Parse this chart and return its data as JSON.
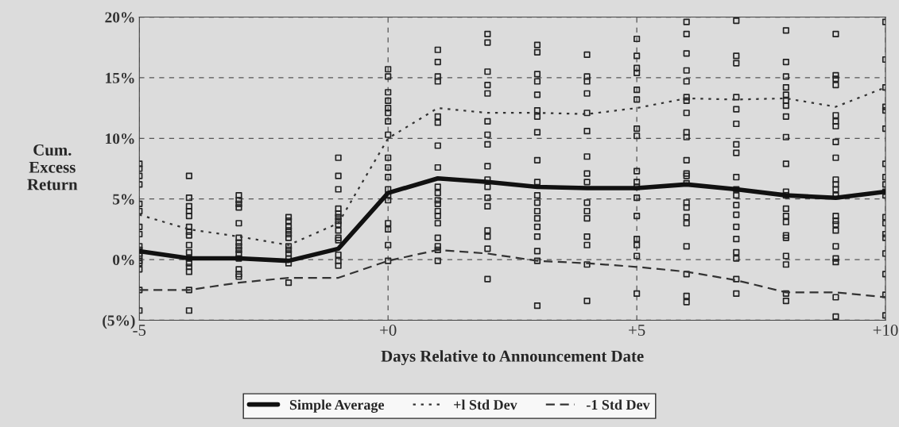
{
  "chart_data": {
    "type": "line",
    "xlabel": "Days Relative to Announcement Date",
    "ylabel": "Cum.\nExcess\nReturn",
    "x": [
      -5,
      -4,
      -3,
      -2,
      -1,
      0,
      1,
      2,
      3,
      4,
      5,
      6,
      7,
      8,
      9,
      10
    ],
    "xlim": [
      -5,
      10
    ],
    "xticks": [
      {
        "value": -5,
        "label": "-5"
      },
      {
        "value": 0,
        "label": "+0"
      },
      {
        "value": 5,
        "label": "+5"
      },
      {
        "value": 10,
        "label": "+10"
      }
    ],
    "ylim": [
      -5,
      20
    ],
    "yticks": [
      {
        "value": -5,
        "label": "(5%)"
      },
      {
        "value": 0,
        "label": "0%"
      },
      {
        "value": 5,
        "label": "5%"
      },
      {
        "value": 10,
        "label": "10%"
      },
      {
        "value": 15,
        "label": "15%"
      },
      {
        "value": 20,
        "label": "20%"
      }
    ],
    "grid": true,
    "legend": "bottom",
    "series": [
      {
        "type": "scatter",
        "color": "#222222",
        "marker": "square",
        "x": [
          -5,
          -5,
          -5,
          -5,
          -5,
          -5,
          -5,
          -5,
          -5,
          -5,
          -5,
          -5,
          -5,
          -5,
          -5,
          -5,
          -5,
          -4,
          -4,
          -4,
          -4,
          -4,
          -4,
          -4,
          -4,
          -4,
          -4,
          -4,
          -4,
          -4,
          -4,
          -4,
          -4,
          -3,
          -3,
          -3,
          -3,
          -3,
          -3,
          -3,
          -3,
          -3,
          -3,
          -3,
          -3,
          -3,
          -3,
          -2,
          -2,
          -2,
          -2,
          -2,
          -2,
          -2,
          -2,
          -2,
          -2,
          -2,
          -2,
          -1,
          -1,
          -1,
          -1,
          -1,
          -1,
          -1,
          -1,
          -1,
          -1,
          -1,
          -1,
          -1,
          -1,
          0,
          0,
          0,
          0,
          0,
          0,
          0,
          0,
          0,
          0,
          0,
          0,
          0,
          0,
          0,
          0,
          0,
          0,
          1,
          1,
          1,
          1,
          1,
          1,
          1,
          1,
          1,
          1,
          1,
          1,
          1,
          1,
          1,
          1,
          1,
          1,
          1,
          2,
          2,
          2,
          2,
          2,
          2,
          2,
          2,
          2,
          2,
          2,
          2,
          2,
          2,
          2,
          2,
          2,
          3,
          3,
          3,
          3,
          3,
          3,
          3,
          3,
          3,
          3,
          3,
          3,
          3,
          3,
          3,
          3,
          3,
          3,
          3,
          4,
          4,
          4,
          4,
          4,
          4,
          4,
          4,
          4,
          4,
          4,
          4,
          4,
          4,
          4,
          4,
          5,
          5,
          5,
          5,
          5,
          5,
          5,
          5,
          5,
          5,
          5,
          5,
          5,
          5,
          5,
          5,
          5,
          6,
          6,
          6,
          6,
          6,
          6,
          6,
          6,
          6,
          6,
          6,
          6,
          6,
          6,
          6,
          6,
          6,
          6,
          6,
          6,
          6,
          6,
          7,
          7,
          7,
          7,
          7,
          7,
          7,
          7,
          7,
          7,
          7,
          7,
          7,
          7,
          7,
          7,
          7,
          7,
          7,
          8,
          8,
          8,
          8,
          8,
          8,
          8,
          8,
          8,
          8,
          8,
          8,
          8,
          8,
          8,
          8,
          8,
          8,
          8,
          8,
          8,
          9,
          9,
          9,
          9,
          9,
          9,
          9,
          9,
          9,
          9,
          9,
          9,
          9,
          9,
          9,
          9,
          9,
          9,
          9,
          9,
          9,
          9,
          10,
          10,
          10,
          10,
          10,
          10,
          10,
          10,
          10,
          10,
          10,
          10,
          10,
          10,
          10,
          10,
          10,
          10,
          10
        ],
        "values": [
          7.9,
          7.5,
          6.9,
          6.2,
          4.6,
          4.0,
          2.7,
          2.1,
          1.1,
          0.8,
          0.5,
          0.3,
          -0.1,
          -0.3,
          -0.8,
          -2.5,
          -4.2,
          6.9,
          5.1,
          4.4,
          4.0,
          3.6,
          2.7,
          2.3,
          2.0,
          1.2,
          0.6,
          0.1,
          -0.3,
          -0.6,
          -1.0,
          -2.5,
          -4.2,
          5.3,
          4.9,
          4.6,
          4.3,
          3.0,
          1.8,
          1.4,
          1.1,
          0.8,
          0.5,
          0.1,
          -0.8,
          -1.2,
          -1.4,
          3.5,
          3.2,
          2.7,
          2.4,
          2.1,
          1.8,
          1.1,
          0.8,
          0.5,
          0.1,
          -0.3,
          -1.9,
          8.4,
          6.9,
          5.8,
          4.2,
          3.8,
          3.5,
          3.2,
          2.9,
          2.4,
          1.8,
          1.6,
          0.4,
          -0.1,
          -0.5,
          15.7,
          15.1,
          13.8,
          13.1,
          12.5,
          12.1,
          11.4,
          10.3,
          8.4,
          7.6,
          6.8,
          5.8,
          5.3,
          4.9,
          3.0,
          2.5,
          1.2,
          -0.1,
          17.3,
          16.3,
          15.1,
          14.7,
          11.8,
          11.3,
          9.4,
          7.6,
          6.0,
          5.5,
          4.9,
          4.6,
          4.0,
          3.6,
          3.0,
          1.8,
          1.1,
          0.8,
          -0.1,
          18.6,
          17.9,
          15.5,
          14.4,
          13.7,
          11.4,
          10.3,
          9.5,
          7.7,
          6.6,
          6.0,
          5.1,
          4.4,
          2.4,
          1.9,
          0.9,
          -1.6,
          17.7,
          17.1,
          15.3,
          14.7,
          13.6,
          12.3,
          11.8,
          10.5,
          8.2,
          6.4,
          5.3,
          4.7,
          4.0,
          3.4,
          2.7,
          1.9,
          0.7,
          -0.1,
          -3.8,
          16.9,
          15.1,
          14.7,
          13.7,
          12.1,
          10.6,
          8.5,
          7.1,
          6.4,
          4.7,
          4.0,
          3.4,
          1.9,
          1.2,
          -0.4,
          -3.4,
          18.2,
          16.8,
          15.8,
          15.4,
          14.0,
          13.2,
          10.8,
          10.2,
          7.3,
          6.4,
          6.0,
          5.1,
          3.6,
          1.7,
          1.2,
          0.3,
          -2.8,
          19.6,
          18.6,
          17.0,
          15.6,
          14.7,
          13.4,
          13.1,
          12.1,
          10.5,
          10.1,
          8.2,
          7.1,
          6.9,
          6.3,
          4.7,
          4.3,
          3.5,
          3.0,
          1.1,
          -1.2,
          -3.0,
          -3.5,
          19.7,
          16.8,
          16.2,
          13.4,
          12.4,
          11.2,
          9.5,
          8.8,
          6.8,
          5.8,
          5.3,
          4.5,
          3.7,
          2.7,
          1.7,
          0.6,
          0.1,
          -1.6,
          -2.8,
          18.9,
          16.3,
          15.1,
          14.2,
          13.6,
          13.1,
          12.7,
          11.8,
          10.1,
          7.9,
          5.6,
          5.3,
          4.2,
          3.6,
          3.1,
          2.0,
          1.8,
          0.3,
          -0.4,
          -2.8,
          -3.4,
          18.6,
          15.2,
          14.9,
          14.4,
          11.9,
          11.4,
          11.0,
          9.7,
          8.4,
          6.6,
          6.2,
          5.8,
          5.3,
          3.6,
          3.2,
          2.9,
          2.4,
          1.1,
          0.1,
          -0.2,
          -3.1,
          -4.7,
          19.6,
          16.5,
          14.2,
          12.6,
          12.3,
          10.8,
          7.9,
          6.8,
          6.2,
          5.6,
          5.3,
          3.5,
          3.0,
          2.1,
          1.8,
          0.5,
          -1.2,
          -2.9,
          -4.6
        ]
      },
      {
        "name": "Simple Average",
        "color": "#111111",
        "line_style": "solid",
        "values": [
          0.7,
          0.1,
          0.1,
          -0.1,
          0.9,
          5.5,
          6.7,
          6.4,
          6.0,
          5.9,
          5.9,
          6.2,
          5.8,
          5.3,
          5.1,
          5.6
        ]
      },
      {
        "name": "+l Std Dev",
        "color": "#333333",
        "line_style": "dotted",
        "values": [
          3.7,
          2.5,
          1.9,
          1.2,
          3.0,
          10.0,
          12.5,
          12.1,
          12.1,
          12.0,
          12.5,
          13.3,
          13.2,
          13.3,
          12.6,
          14.2
        ]
      },
      {
        "name": "-1 Std Dev",
        "color": "#333333",
        "line_style": "dashed",
        "values": [
          -2.5,
          -2.5,
          -1.9,
          -1.5,
          -1.5,
          -0.1,
          0.8,
          0.5,
          -0.1,
          -0.3,
          -0.6,
          -1.0,
          -1.7,
          -2.7,
          -2.7,
          -3.1
        ]
      }
    ]
  }
}
